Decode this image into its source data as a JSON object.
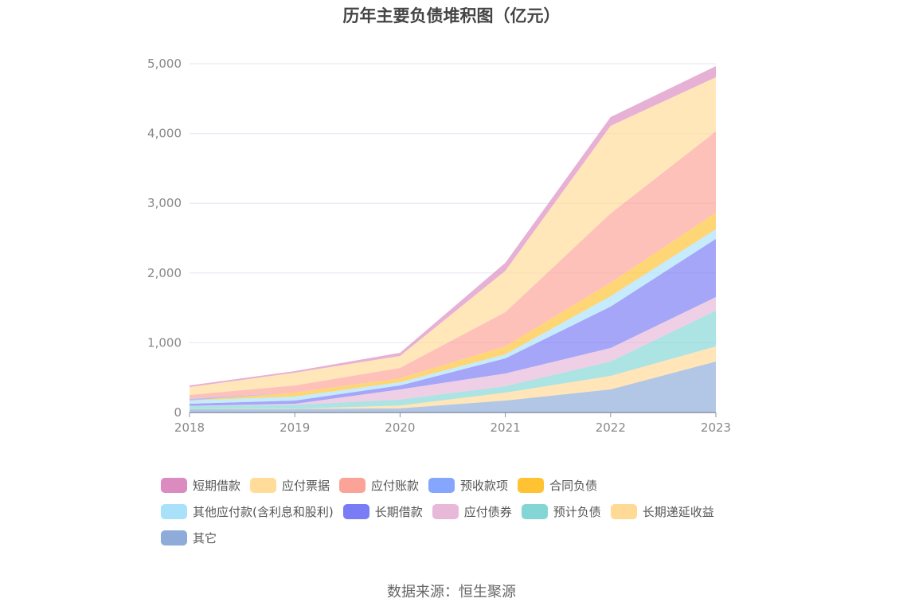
{
  "title": "历年主要负债堆积图（亿元）",
  "source": "数据来源：恒生聚源",
  "chart_data": {
    "type": "area",
    "stacked": true,
    "title": "历年主要负债堆积图（亿元）",
    "xlabel": "",
    "ylabel": "",
    "categories": [
      "2018",
      "2019",
      "2020",
      "2021",
      "2022",
      "2023"
    ],
    "ylim": [
      0,
      5000
    ],
    "yticks": [
      "0",
      "1,000",
      "2,000",
      "3,000",
      "4,000",
      "5,000"
    ],
    "ytick_values": [
      0,
      1000,
      2000,
      3000,
      4000,
      5000
    ],
    "grid": true,
    "legend_position": "bottom",
    "series": [
      {
        "name": "其它",
        "color": "#8eabd9",
        "values": [
          45,
          50,
          60,
          171,
          331,
          731
        ]
      },
      {
        "name": "长期递延收益",
        "color": "#ffd996",
        "values": [
          3,
          5,
          40,
          114,
          194,
          216
        ]
      },
      {
        "name": "预计负债",
        "color": "#84d6d6",
        "values": [
          42,
          55,
          86,
          92,
          206,
          514
        ]
      },
      {
        "name": "应付债券",
        "color": "#e8b8d9",
        "values": [
          5,
          15,
          145,
          182,
          194,
          194
        ]
      },
      {
        "name": "长期借款",
        "color": "#7a7cf5",
        "values": [
          30,
          46,
          57,
          217,
          593,
          834
        ]
      },
      {
        "name": "其他应付款(含利息和股利)",
        "color": "#a9e1fb",
        "values": [
          46,
          57,
          46,
          57,
          149,
          137
        ]
      },
      {
        "name": "合同负债",
        "color": "#ffc233",
        "values": [
          0,
          57,
          57,
          114,
          194,
          239
        ]
      },
      {
        "name": "预收款项",
        "color": "#86a5fc",
        "values": [
          23,
          0,
          0,
          0,
          0,
          0
        ]
      },
      {
        "name": "应付账款",
        "color": "#fca398",
        "values": [
          57,
          103,
          148,
          491,
          993,
          1165
        ]
      },
      {
        "name": "应付票据",
        "color": "#ffdc9a",
        "values": [
          114,
          183,
          172,
          594,
          1256,
          776
        ]
      },
      {
        "name": "短期借款",
        "color": "#dc8bc1",
        "values": [
          23,
          23,
          45,
          114,
          125,
          160
        ]
      }
    ],
    "legend_order": [
      "短期借款",
      "应付票据",
      "应付账款",
      "预收款项",
      "合同负债",
      "其他应付款(含利息和股利)",
      "长期借款",
      "应付债券",
      "预计负债",
      "长期递延收益",
      "其它"
    ]
  }
}
